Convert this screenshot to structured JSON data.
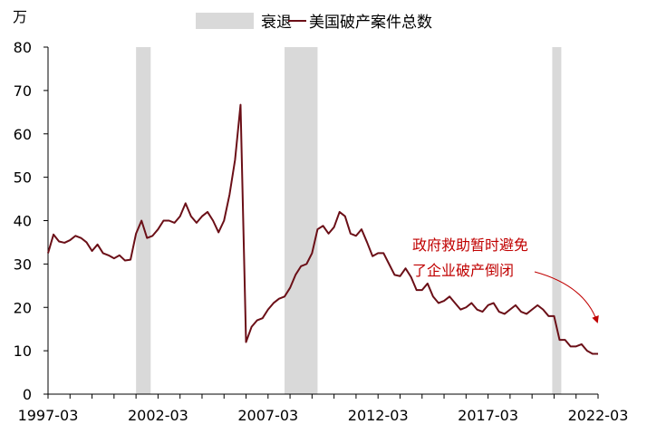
{
  "chart_data": {
    "type": "line",
    "unit_label": "万",
    "legend": {
      "placement": "top-center",
      "recession_label": "衰退",
      "series_label": "美国破产案件总数"
    },
    "colors": {
      "series": "#6B0F17",
      "recession": "#D9D9D9",
      "annotation": "#C00000",
      "axis": "#000000"
    },
    "x_range": [
      "1997-03",
      "2022-03"
    ],
    "xtick_labels": [
      "1997-03",
      "2002-03",
      "2007-03",
      "2012-03",
      "2017-03",
      "2022-03"
    ],
    "ylim": [
      0,
      80
    ],
    "yticks": [
      0,
      10,
      20,
      30,
      40,
      50,
      60,
      70,
      80
    ],
    "recessions": [
      {
        "start": "2001-03",
        "end": "2001-11"
      },
      {
        "start": "2007-12",
        "end": "2009-06"
      },
      {
        "start": "2020-02",
        "end": "2020-06"
      }
    ],
    "series": [
      {
        "x": [
          "1997-03",
          "1997-06",
          "1997-09",
          "1997-12",
          "1998-03",
          "1998-06",
          "1998-09",
          "1998-12",
          "1999-03",
          "1999-06",
          "1999-09",
          "1999-12",
          "2000-03",
          "2000-06",
          "2000-09",
          "2000-12",
          "2001-03",
          "2001-06",
          "2001-09",
          "2001-12",
          "2002-03",
          "2002-06",
          "2002-09",
          "2002-12",
          "2003-03",
          "2003-06",
          "2003-09",
          "2003-12",
          "2004-03",
          "2004-06",
          "2004-09",
          "2004-12",
          "2005-03",
          "2005-06",
          "2005-09",
          "2005-12",
          "2006-03",
          "2006-06",
          "2006-09",
          "2006-12",
          "2007-03",
          "2007-06",
          "2007-09",
          "2007-12",
          "2008-03",
          "2008-06",
          "2008-09",
          "2008-12",
          "2009-03",
          "2009-06",
          "2009-09",
          "2009-12",
          "2010-03",
          "2010-06",
          "2010-09",
          "2010-12",
          "2011-03",
          "2011-06",
          "2011-09",
          "2011-12",
          "2012-03",
          "2012-06",
          "2012-09",
          "2012-12",
          "2013-03",
          "2013-06",
          "2013-09",
          "2013-12",
          "2014-03",
          "2014-06",
          "2014-09",
          "2014-12",
          "2015-03",
          "2015-06",
          "2015-09",
          "2015-12",
          "2016-03",
          "2016-06",
          "2016-09",
          "2016-12",
          "2017-03",
          "2017-06",
          "2017-09",
          "2017-12",
          "2018-03",
          "2018-06",
          "2018-09",
          "2018-12",
          "2019-03",
          "2019-06",
          "2019-09",
          "2019-12",
          "2020-03",
          "2020-06",
          "2020-09",
          "2020-12",
          "2021-03",
          "2021-06",
          "2021-09",
          "2021-12",
          "2022-03"
        ],
        "values": [
          32.5,
          36.8,
          35.2,
          34.9,
          35.5,
          36.5,
          36.0,
          35.0,
          33.0,
          34.5,
          32.5,
          32.0,
          31.3,
          32.0,
          30.8,
          31.0,
          37.0,
          40.0,
          36.0,
          36.5,
          38.0,
          40.0,
          40.0,
          39.5,
          41.0,
          44.0,
          41.0,
          39.5,
          41.0,
          42.0,
          40.0,
          37.3,
          40.0,
          46.0,
          54.0,
          66.7,
          12.0,
          15.5,
          17.0,
          17.5,
          19.5,
          21.0,
          22.0,
          22.5,
          24.5,
          27.5,
          29.5,
          30.0,
          32.5,
          38.0,
          38.8,
          37.0,
          38.5,
          42.0,
          41.0,
          37.0,
          36.5,
          38.0,
          35.0,
          31.8,
          32.5,
          32.5,
          30.0,
          27.5,
          27.2,
          29.0,
          27.0,
          24.0,
          24.0,
          25.5,
          22.5,
          21.0,
          21.5,
          22.5,
          21.0,
          19.5,
          20.0,
          21.0,
          19.5,
          19.0,
          20.5,
          21.0,
          19.0,
          18.5,
          19.5,
          20.5,
          19.0,
          18.5,
          19.5,
          20.5,
          19.5,
          18.0,
          18.0,
          12.5,
          12.5,
          11.0,
          11.0,
          11.5,
          10.0,
          9.3,
          9.3
        ]
      }
    ],
    "annotation": {
      "lines": [
        "政府救助暂时避免",
        "了企业破产倒闭"
      ]
    }
  }
}
